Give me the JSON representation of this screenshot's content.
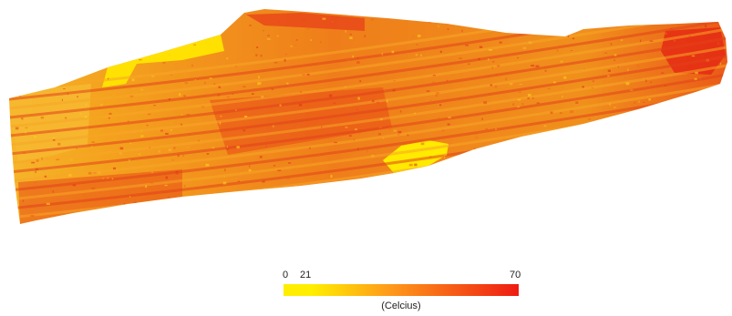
{
  "legend": {
    "min_label": "0",
    "mid_label": "21",
    "max_label": "70",
    "unit_label": "(Celcius)",
    "min_value": 0,
    "mid_value": 21,
    "max_value": 70,
    "color_low": "#ffee00",
    "color_mid": "#ff9a1a",
    "color_high": "#ee1c12"
  },
  "map": {
    "base_color": "#f4a01e",
    "hot_color": "#e8401a",
    "cool_color": "#ffe600",
    "warm_color": "#f2b630"
  }
}
